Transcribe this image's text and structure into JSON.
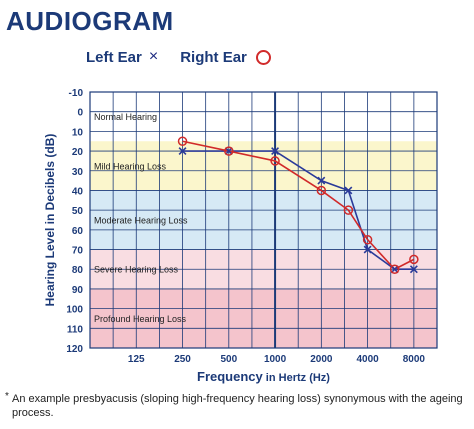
{
  "chart_data": {
    "type": "line",
    "title": "AUDIOGRAM",
    "xlabel": "Frequency in Hertz (Hz)",
    "xlabel_parts": {
      "bold": "Frequency",
      "rest": " in Hertz (Hz)"
    },
    "ylabel": "Hearing Level in Decibels (dB)",
    "x_ticks": [
      "125",
      "250",
      "500",
      "1000",
      "2000",
      "4000",
      "8000"
    ],
    "y_ticks": [
      -10,
      0,
      10,
      20,
      30,
      40,
      50,
      60,
      70,
      80,
      90,
      100,
      110,
      120
    ],
    "ylim": [
      -10,
      120
    ],
    "y_inverted": true,
    "x_scale": "log2",
    "xlim": [
      62.5,
      11313
    ],
    "grid": true,
    "legend_placement": "top",
    "bands": [
      {
        "label": "Normal Hearing",
        "from": -10,
        "to": 15,
        "color": "#ffffff"
      },
      {
        "label": "Mild Hearing Loss",
        "from": 15,
        "to": 40,
        "color": "#fbf6cc"
      },
      {
        "label": "Moderate Hearing Loss",
        "from": 40,
        "to": 70,
        "color": "#d6e9f5"
      },
      {
        "label": "Severe Hearing Loss",
        "from": 70,
        "to": 90,
        "color": "#f9dde2"
      },
      {
        "label": "Profound Hearing Loss",
        "from": 90,
        "to": 120,
        "color": "#f4c4cc"
      }
    ],
    "series": [
      {
        "name": "Left Ear",
        "marker": "x",
        "color": "#2a3a9a",
        "points": [
          {
            "x": 250,
            "y": 20
          },
          {
            "x": 500,
            "y": 20
          },
          {
            "x": 1000,
            "y": 20
          },
          {
            "x": 2000,
            "y": 35
          },
          {
            "x": 3000,
            "y": 40
          },
          {
            "x": 4000,
            "y": 70
          },
          {
            "x": 6000,
            "y": 80
          },
          {
            "x": 8000,
            "y": 80
          }
        ]
      },
      {
        "name": "Right Ear",
        "marker": "o",
        "color": "#d12a2a",
        "points": [
          {
            "x": 250,
            "y": 15
          },
          {
            "x": 500,
            "y": 20
          },
          {
            "x": 1000,
            "y": 25
          },
          {
            "x": 2000,
            "y": 40
          },
          {
            "x": 3000,
            "y": 50
          },
          {
            "x": 4000,
            "y": 65
          },
          {
            "x": 6000,
            "y": 80
          },
          {
            "x": 8000,
            "y": 75
          }
        ]
      }
    ]
  },
  "legend": {
    "left_label": "Left Ear",
    "left_marker": "×",
    "right_label": "Right Ear"
  },
  "footnote": {
    "star": "*",
    "text": "An example presbyacusis (sloping high-frequency hearing loss) synonymous with the ageing process."
  },
  "colors": {
    "axis_text": "#1c3a78",
    "grid": "#1c3a78"
  }
}
